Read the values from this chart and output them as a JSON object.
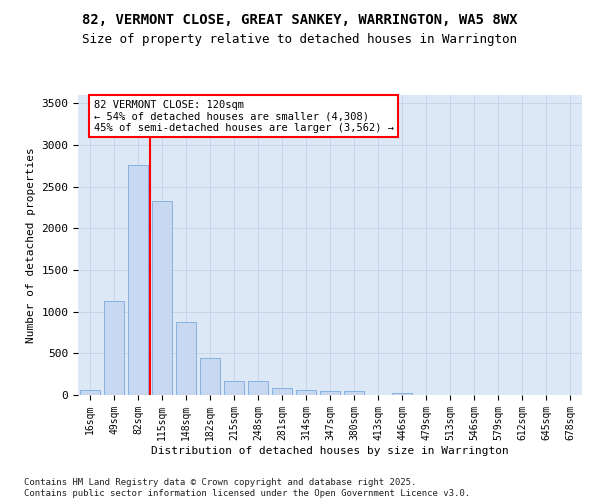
{
  "title_line1": "82, VERMONT CLOSE, GREAT SANKEY, WARRINGTON, WA5 8WX",
  "title_line2": "Size of property relative to detached houses in Warrington",
  "xlabel": "Distribution of detached houses by size in Warrington",
  "ylabel": "Number of detached properties",
  "categories": [
    "16sqm",
    "49sqm",
    "82sqm",
    "115sqm",
    "148sqm",
    "182sqm",
    "215sqm",
    "248sqm",
    "281sqm",
    "314sqm",
    "347sqm",
    "380sqm",
    "413sqm",
    "446sqm",
    "479sqm",
    "513sqm",
    "546sqm",
    "579sqm",
    "612sqm",
    "645sqm",
    "678sqm"
  ],
  "values": [
    55,
    1130,
    2760,
    2330,
    880,
    440,
    170,
    165,
    90,
    65,
    50,
    50,
    0,
    30,
    0,
    0,
    0,
    0,
    0,
    0,
    0
  ],
  "bar_color": "#c8d8f0",
  "bar_edge_color": "#7aaadd",
  "vline_color": "red",
  "vline_x": 2.5,
  "annotation_line1": "82 VERMONT CLOSE: 120sqm",
  "annotation_line2": "← 54% of detached houses are smaller (4,308)",
  "annotation_line3": "45% of semi-detached houses are larger (3,562) →",
  "annotation_box_facecolor": "white",
  "annotation_box_edgecolor": "red",
  "ylim_max": 3600,
  "yticks": [
    0,
    500,
    1000,
    1500,
    2000,
    2500,
    3000,
    3500
  ],
  "grid_color": "#c8d4e8",
  "bg_color": "#dce8f5",
  "footer_line1": "Contains HM Land Registry data © Crown copyright and database right 2025.",
  "footer_line2": "Contains public sector information licensed under the Open Government Licence v3.0."
}
